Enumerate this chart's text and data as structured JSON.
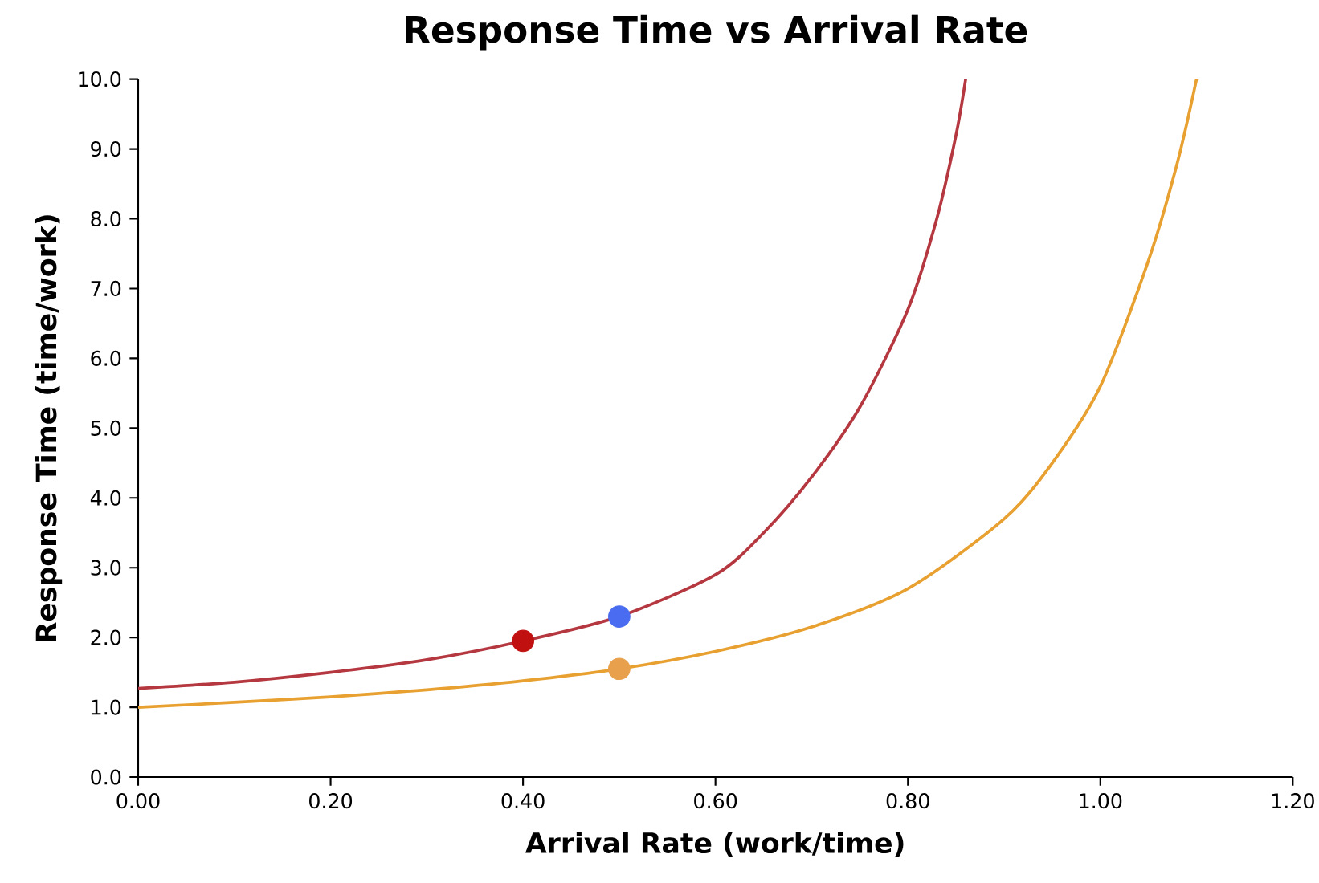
{
  "chart_data": {
    "type": "line",
    "title": "Response Time vs Arrival Rate",
    "xlabel": "Arrival Rate (work/time)",
    "ylabel": "Response Time (time/work)",
    "xlim": [
      0,
      1.2
    ],
    "ylim": [
      0,
      10
    ],
    "xticks": [
      {
        "value": 0,
        "label": "0.00"
      },
      {
        "value": 0.2,
        "label": "0.20"
      },
      {
        "value": 0.4,
        "label": "0.40"
      },
      {
        "value": 0.6,
        "label": "0.60"
      },
      {
        "value": 0.8,
        "label": "0.80"
      },
      {
        "value": 1.0,
        "label": "1.00"
      },
      {
        "value": 1.2,
        "label": "1.20"
      }
    ],
    "yticks": [
      {
        "value": 0,
        "label": "0.0"
      },
      {
        "value": 1,
        "label": "1.0"
      },
      {
        "value": 2,
        "label": "2.0"
      },
      {
        "value": 3,
        "label": "3.0"
      },
      {
        "value": 4,
        "label": "4.0"
      },
      {
        "value": 5,
        "label": "5.0"
      },
      {
        "value": 6,
        "label": "6.0"
      },
      {
        "value": 7,
        "label": "7.0"
      },
      {
        "value": 8,
        "label": "8.0"
      },
      {
        "value": 9,
        "label": "9.0"
      },
      {
        "value": 10,
        "label": "10.0"
      }
    ],
    "series": [
      {
        "color": "#b5373f",
        "marker": "none",
        "x": [
          0,
          0.1,
          0.2,
          0.3,
          0.4,
          0.5,
          0.6,
          0.65,
          0.7,
          0.75,
          0.8,
          0.83,
          0.85,
          0.86
        ],
        "values": [
          1.27,
          1.36,
          1.5,
          1.68,
          1.95,
          2.3,
          2.9,
          3.5,
          4.3,
          5.3,
          6.7,
          8.0,
          9.2,
          10.0
        ]
      },
      {
        "color": "#e8a030",
        "marker": "none",
        "x": [
          0,
          0.1,
          0.2,
          0.3,
          0.4,
          0.5,
          0.6,
          0.7,
          0.8,
          0.9,
          0.95,
          1.0,
          1.05,
          1.08,
          1.1
        ],
        "values": [
          1.0,
          1.07,
          1.15,
          1.25,
          1.38,
          1.55,
          1.8,
          2.15,
          2.7,
          3.7,
          4.5,
          5.6,
          7.4,
          8.8,
          10.0
        ]
      },
      {
        "type": "scatter",
        "color": "#c01010",
        "marker": "circle",
        "x": [
          0.4
        ],
        "values": [
          1.95
        ]
      },
      {
        "type": "scatter",
        "color": "#4a6cf0",
        "marker": "circle",
        "x": [
          0.5
        ],
        "values": [
          2.3
        ]
      },
      {
        "type": "scatter",
        "color": "#e8a04c",
        "marker": "circle",
        "x": [
          0.5
        ],
        "values": [
          1.55
        ]
      }
    ]
  }
}
